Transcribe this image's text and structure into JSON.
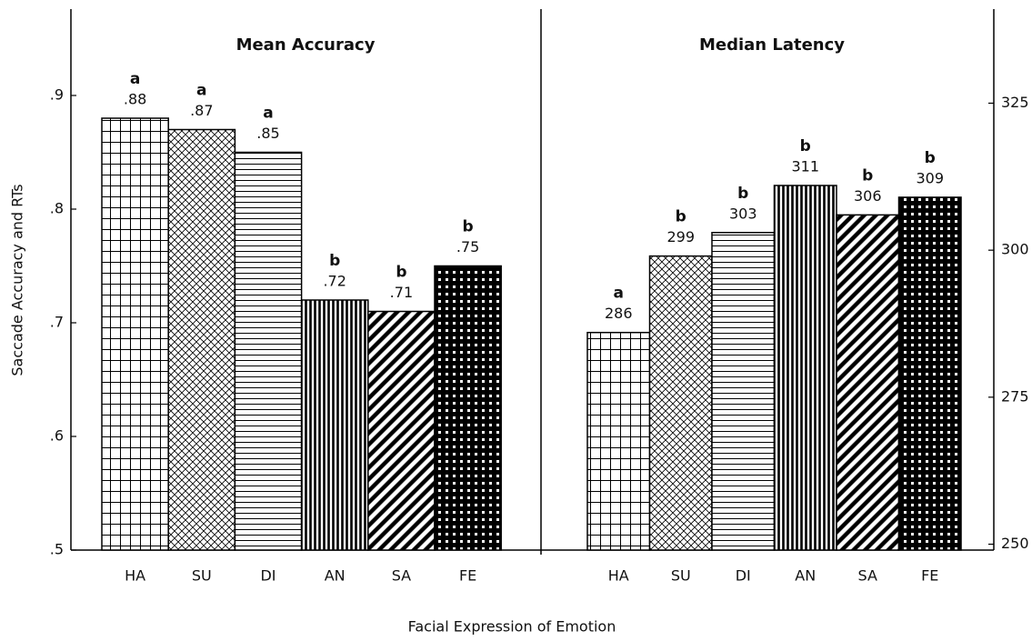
{
  "chart_data": [
    {
      "type": "bar",
      "title": "Mean Accuracy",
      "ylabel": "Saccade Accuracy and RTs",
      "xlabel": "Facial Expression of Emotion",
      "categories": [
        "HA",
        "SU",
        "DI",
        "AN",
        "SA",
        "FE"
      ],
      "values": [
        0.88,
        0.87,
        0.85,
        0.72,
        0.71,
        0.75
      ],
      "value_labels": [
        ".88",
        ".87",
        ".85",
        ".72",
        ".71",
        ".75"
      ],
      "significance": [
        "a",
        "a",
        "a",
        "b",
        "b",
        "b"
      ],
      "color": "#000000",
      "ylim": [
        0.5,
        0.976
      ],
      "yticks": [
        {
          "value": 0.5,
          "label": ".5"
        },
        {
          "value": 0.6,
          "label": ".6"
        },
        {
          "value": 0.7,
          "label": ".7"
        },
        {
          "value": 0.8,
          "label": ".8"
        },
        {
          "value": 0.9,
          "label": ".9"
        }
      ]
    },
    {
      "type": "bar",
      "title": "Median Latency",
      "categories": [
        "HA",
        "SU",
        "DI",
        "AN",
        "SA",
        "FE"
      ],
      "values": [
        286,
        299,
        303,
        311,
        306,
        309
      ],
      "significance": [
        "a",
        "b",
        "b",
        "b",
        "b",
        "b"
      ],
      "color": "#000000",
      "ylim": [
        249,
        341
      ],
      "yticks": [
        250,
        275,
        300,
        325
      ]
    }
  ]
}
